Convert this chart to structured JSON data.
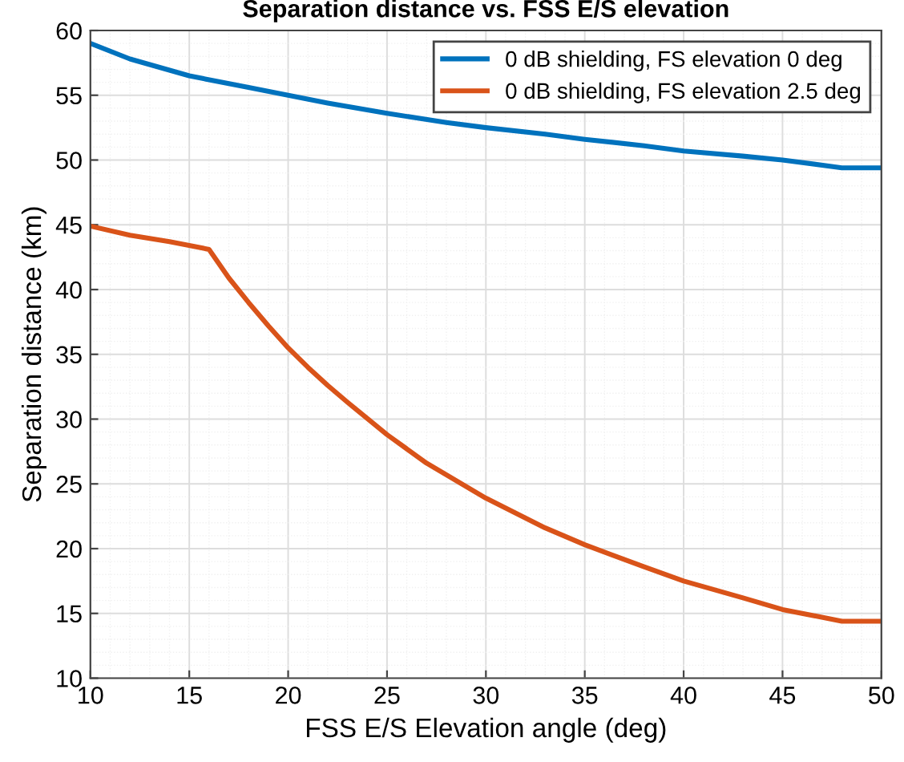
{
  "chart_data": {
    "type": "line",
    "title": "Separation distance vs. FSS E/S elevation",
    "xlabel": "FSS E/S Elevation angle (deg)",
    "ylabel": "Separation distance (km)",
    "xlim": [
      10,
      50
    ],
    "xticks": [
      10,
      15,
      20,
      25,
      30,
      35,
      40,
      45,
      50
    ],
    "ylim": [
      10,
      60
    ],
    "yticks": [
      10,
      15,
      20,
      25,
      30,
      35,
      40,
      45,
      50,
      55,
      60
    ],
    "grid": true,
    "legend": "top right",
    "marker": "none",
    "line_style": "solid",
    "series": [
      {
        "name": "0 dB shielding, FS elevation 0 deg",
        "color": "#0072bd",
        "x": [
          10,
          12,
          15,
          18,
          20,
          22,
          25,
          28,
          30,
          33,
          35,
          38,
          40,
          43,
          45,
          48,
          50
        ],
        "values": [
          59,
          57.8,
          56.5,
          55.6,
          55,
          54.4,
          53.6,
          52.9,
          52.5,
          52,
          51.6,
          51.1,
          50.7,
          50.3,
          50,
          49.4,
          49.4
        ]
      },
      {
        "name": "0 dB shielding, FS elevation 2.5 deg",
        "color": "#d95319",
        "x": [
          10,
          12,
          14,
          16,
          17,
          18,
          19,
          20,
          21,
          22,
          23,
          25,
          27,
          30,
          33,
          35,
          38,
          40,
          43,
          45,
          48,
          50
        ],
        "values": [
          44.9,
          44.2,
          43.7,
          43.1,
          40.9,
          39,
          37.2,
          35.5,
          34,
          32.6,
          31.3,
          28.8,
          26.6,
          23.9,
          21.6,
          20.3,
          18.6,
          17.5,
          16.2,
          15.3,
          14.4,
          14.4
        ]
      }
    ]
  }
}
